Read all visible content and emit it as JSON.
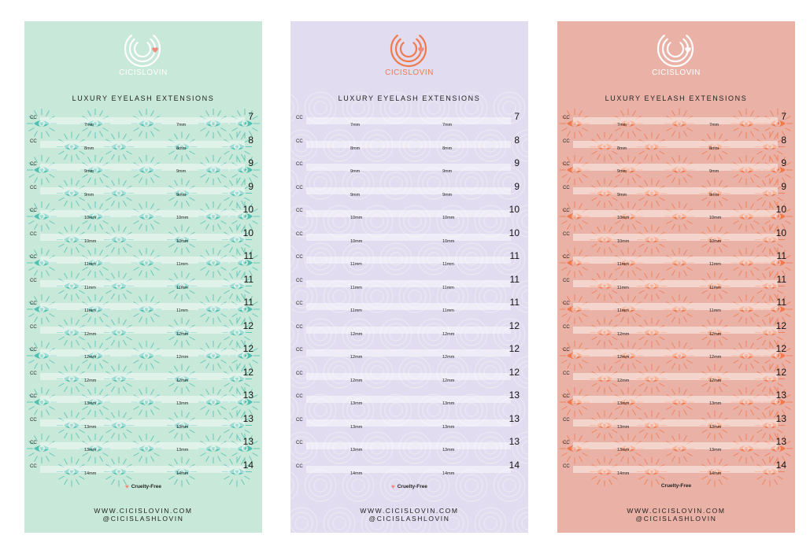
{
  "cards": [
    {
      "brand": "CICISLOVIN",
      "headline": "LUXURY EYELASH EXTENSIONS",
      "cruelty_free": "Cruelty-Free",
      "website": "WWW.CICISLOVIN.COM",
      "handle": "@CICISLASHLOVIN",
      "colors": {
        "background": "#c8e8d9",
        "accent": "#4dc0b2",
        "brand_text": "#ffffff",
        "heart": "#f28a7f"
      },
      "pattern": "eye-burst"
    },
    {
      "brand": "CICISLOVIN",
      "headline": "LUXURY EYELASH EXTENSIONS",
      "cruelty_free": "Cruelty-Free",
      "website": "WWW.CICISLOVIN.COM",
      "handle": "@CICISLASHLOVIN",
      "colors": {
        "background": "#e1dcef",
        "accent": "#f07a4f",
        "brand_text": "#f07a4f",
        "heart": "#f28a7f"
      },
      "pattern": "concentric-circles"
    },
    {
      "brand": "CICISLOVIN",
      "headline": "LUXURY EYELASH EXTENSIONS",
      "cruelty_free": "Cruelty-Free",
      "website": "WWW.CICISLOVIN.COM",
      "handle": "@CICISLASHLOVIN",
      "colors": {
        "background": "#eab2a6",
        "accent": "#f0784a",
        "brand_text": "#ffffff",
        "heart": "#ffffff"
      },
      "pattern": "eye-burst"
    }
  ],
  "rows": [
    {
      "cc": "CC",
      "mm": "7mm",
      "num": "7"
    },
    {
      "cc": "CC",
      "mm": "8mm",
      "num": "8"
    },
    {
      "cc": "CC",
      "mm": "9mm",
      "num": "9"
    },
    {
      "cc": "CC",
      "mm": "9mm",
      "num": "9"
    },
    {
      "cc": "CC",
      "mm": "10mm",
      "num": "10"
    },
    {
      "cc": "CC",
      "mm": "10mm",
      "num": "10"
    },
    {
      "cc": "CC",
      "mm": "11mm",
      "num": "11"
    },
    {
      "cc": "CC",
      "mm": "11mm",
      "num": "11"
    },
    {
      "cc": "CC",
      "mm": "11mm",
      "num": "11"
    },
    {
      "cc": "CC",
      "mm": "12mm",
      "num": "12"
    },
    {
      "cc": "CC",
      "mm": "12mm",
      "num": "12"
    },
    {
      "cc": "CC",
      "mm": "12mm",
      "num": "12"
    },
    {
      "cc": "CC",
      "mm": "13mm",
      "num": "13"
    },
    {
      "cc": "CC",
      "mm": "13mm",
      "num": "13"
    },
    {
      "cc": "CC",
      "mm": "13mm",
      "num": "13"
    },
    {
      "cc": "CC",
      "mm": "14mm",
      "num": "14"
    }
  ]
}
